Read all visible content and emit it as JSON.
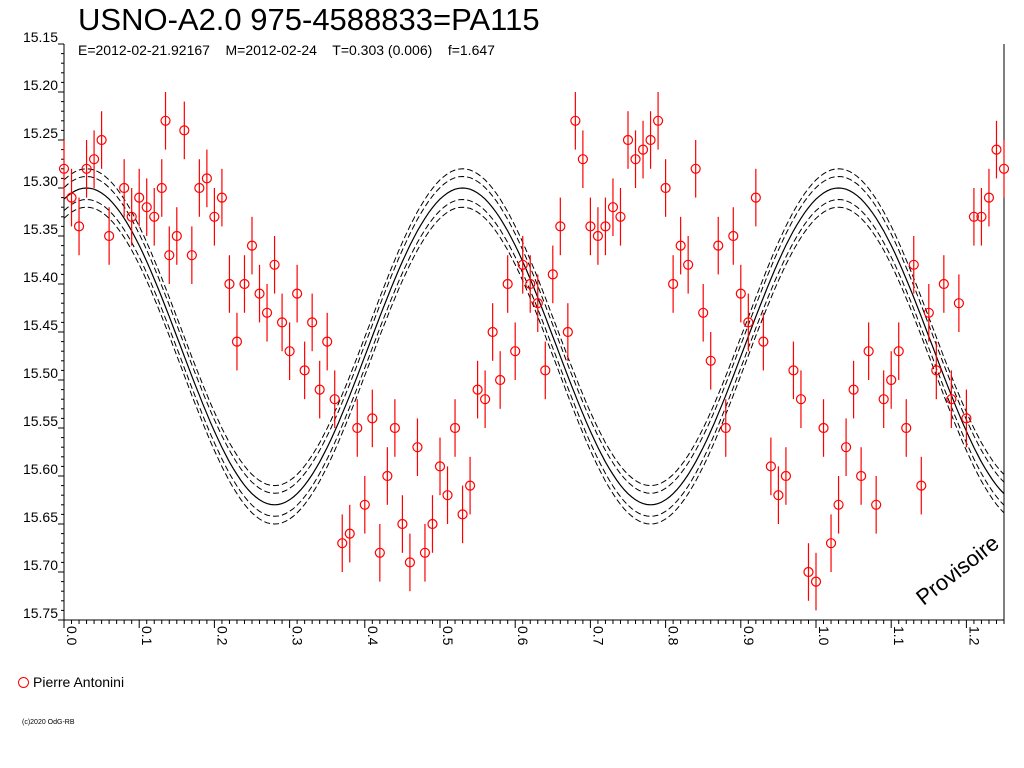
{
  "header": {
    "title": "USNO-A2.0 975-4588833=PA115",
    "subtitle": "E=2012-02-21.92167    M=2012-02-24    T=0.303 (0.006)    f=1.647"
  },
  "legend": {
    "label": "Pierre Antonini"
  },
  "watermark": "Provisoire",
  "copyright": "(c)2020 OdG-RB",
  "colors": {
    "points": "#ff0000",
    "fit": "#000000"
  },
  "chart_data": {
    "type": "scatter",
    "title": "USNO-A2.0 975-4588833=PA115",
    "xlabel": "",
    "ylabel": "",
    "xlim": [
      0.0,
      1.25
    ],
    "ylim": [
      15.75,
      15.15
    ],
    "y_inverted": true,
    "grid": false,
    "xticks": [
      "0.0",
      "0.1",
      "0.2",
      "0.3",
      "0.4",
      "0.5",
      "0.6",
      "0.7",
      "0.8",
      "0.9",
      "1.0",
      "1.1",
      "1.2"
    ],
    "yticks": [
      "15.15",
      "15.20",
      "15.25",
      "15.30",
      "15.35",
      "15.40",
      "15.45",
      "15.50",
      "15.55",
      "15.60",
      "15.65",
      "15.70",
      "15.75"
    ],
    "fit_curve": {
      "period_phase": 0.5,
      "mean_mag": 15.465,
      "amplitude": 0.165,
      "max_phase": 0.03,
      "band_offsets": [
        0.012,
        0.02
      ]
    },
    "series": [
      {
        "name": "Pierre Antonini",
        "marker": "open-circle",
        "points": [
          [
            0.0,
            15.28,
            0.03
          ],
          [
            0.01,
            15.31,
            0.03
          ],
          [
            0.02,
            15.34,
            0.03
          ],
          [
            0.03,
            15.28,
            0.03
          ],
          [
            0.04,
            15.27,
            0.03
          ],
          [
            0.05,
            15.25,
            0.03
          ],
          [
            0.06,
            15.35,
            0.03
          ],
          [
            0.08,
            15.3,
            0.03
          ],
          [
            0.09,
            15.33,
            0.03
          ],
          [
            0.1,
            15.31,
            0.03
          ],
          [
            0.11,
            15.32,
            0.03
          ],
          [
            0.12,
            15.33,
            0.03
          ],
          [
            0.13,
            15.3,
            0.03
          ],
          [
            0.135,
            15.23,
            0.03
          ],
          [
            0.14,
            15.37,
            0.03
          ],
          [
            0.15,
            15.35,
            0.03
          ],
          [
            0.16,
            15.24,
            0.03
          ],
          [
            0.17,
            15.37,
            0.03
          ],
          [
            0.18,
            15.3,
            0.03
          ],
          [
            0.19,
            15.29,
            0.03
          ],
          [
            0.2,
            15.33,
            0.03
          ],
          [
            0.21,
            15.31,
            0.03
          ],
          [
            0.22,
            15.4,
            0.03
          ],
          [
            0.23,
            15.46,
            0.03
          ],
          [
            0.24,
            15.4,
            0.03
          ],
          [
            0.25,
            15.36,
            0.03
          ],
          [
            0.26,
            15.41,
            0.03
          ],
          [
            0.27,
            15.43,
            0.03
          ],
          [
            0.28,
            15.38,
            0.03
          ],
          [
            0.29,
            15.44,
            0.03
          ],
          [
            0.3,
            15.47,
            0.03
          ],
          [
            0.31,
            15.41,
            0.03
          ],
          [
            0.32,
            15.49,
            0.03
          ],
          [
            0.33,
            15.44,
            0.03
          ],
          [
            0.34,
            15.51,
            0.03
          ],
          [
            0.35,
            15.46,
            0.03
          ],
          [
            0.36,
            15.52,
            0.03
          ],
          [
            0.37,
            15.67,
            0.03
          ],
          [
            0.38,
            15.66,
            0.03
          ],
          [
            0.39,
            15.55,
            0.03
          ],
          [
            0.4,
            15.63,
            0.03
          ],
          [
            0.41,
            15.54,
            0.03
          ],
          [
            0.42,
            15.68,
            0.03
          ],
          [
            0.43,
            15.6,
            0.03
          ],
          [
            0.44,
            15.55,
            0.03
          ],
          [
            0.45,
            15.65,
            0.03
          ],
          [
            0.46,
            15.69,
            0.03
          ],
          [
            0.47,
            15.57,
            0.03
          ],
          [
            0.48,
            15.68,
            0.03
          ],
          [
            0.49,
            15.65,
            0.03
          ],
          [
            0.5,
            15.59,
            0.03
          ],
          [
            0.51,
            15.62,
            0.03
          ],
          [
            0.52,
            15.55,
            0.03
          ],
          [
            0.53,
            15.64,
            0.03
          ],
          [
            0.54,
            15.61,
            0.03
          ],
          [
            0.55,
            15.51,
            0.03
          ],
          [
            0.56,
            15.52,
            0.03
          ],
          [
            0.57,
            15.45,
            0.03
          ],
          [
            0.58,
            15.5,
            0.03
          ],
          [
            0.59,
            15.4,
            0.03
          ],
          [
            0.6,
            15.47,
            0.03
          ],
          [
            0.61,
            15.38,
            0.03
          ],
          [
            0.62,
            15.4,
            0.03
          ],
          [
            0.63,
            15.42,
            0.03
          ],
          [
            0.64,
            15.49,
            0.03
          ],
          [
            0.65,
            15.39,
            0.03
          ],
          [
            0.66,
            15.34,
            0.03
          ],
          [
            0.67,
            15.45,
            0.03
          ],
          [
            0.68,
            15.23,
            0.03
          ],
          [
            0.69,
            15.27,
            0.03
          ],
          [
            0.7,
            15.34,
            0.03
          ],
          [
            0.71,
            15.35,
            0.03
          ],
          [
            0.72,
            15.34,
            0.03
          ],
          [
            0.73,
            15.32,
            0.03
          ],
          [
            0.74,
            15.33,
            0.03
          ],
          [
            0.75,
            15.25,
            0.03
          ],
          [
            0.76,
            15.27,
            0.03
          ],
          [
            0.77,
            15.26,
            0.03
          ],
          [
            0.78,
            15.25,
            0.03
          ],
          [
            0.79,
            15.23,
            0.03
          ],
          [
            0.8,
            15.3,
            0.03
          ],
          [
            0.81,
            15.4,
            0.03
          ],
          [
            0.82,
            15.36,
            0.03
          ],
          [
            0.83,
            15.38,
            0.03
          ],
          [
            0.84,
            15.28,
            0.03
          ],
          [
            0.85,
            15.43,
            0.03
          ],
          [
            0.86,
            15.48,
            0.03
          ],
          [
            0.87,
            15.36,
            0.03
          ],
          [
            0.88,
            15.55,
            0.03
          ],
          [
            0.89,
            15.35,
            0.03
          ],
          [
            0.9,
            15.41,
            0.03
          ],
          [
            0.91,
            15.44,
            0.03
          ],
          [
            0.92,
            15.31,
            0.03
          ],
          [
            0.93,
            15.46,
            0.03
          ],
          [
            0.94,
            15.59,
            0.03
          ],
          [
            0.95,
            15.62,
            0.03
          ],
          [
            0.96,
            15.6,
            0.03
          ],
          [
            0.97,
            15.49,
            0.03
          ],
          [
            0.98,
            15.52,
            0.03
          ],
          [
            0.99,
            15.7,
            0.03
          ],
          [
            1.0,
            15.71,
            0.03
          ],
          [
            1.01,
            15.55,
            0.03
          ],
          [
            1.02,
            15.67,
            0.03
          ],
          [
            1.03,
            15.63,
            0.03
          ],
          [
            1.04,
            15.57,
            0.03
          ],
          [
            1.05,
            15.51,
            0.03
          ],
          [
            1.06,
            15.6,
            0.03
          ],
          [
            1.07,
            15.47,
            0.03
          ],
          [
            1.08,
            15.63,
            0.03
          ],
          [
            1.09,
            15.52,
            0.03
          ],
          [
            1.1,
            15.5,
            0.03
          ],
          [
            1.11,
            15.47,
            0.03
          ],
          [
            1.12,
            15.55,
            0.03
          ],
          [
            1.13,
            15.38,
            0.03
          ],
          [
            1.14,
            15.61,
            0.03
          ],
          [
            1.15,
            15.43,
            0.03
          ],
          [
            1.16,
            15.49,
            0.03
          ],
          [
            1.17,
            15.4,
            0.03
          ],
          [
            1.18,
            15.52,
            0.03
          ],
          [
            1.19,
            15.42,
            0.03
          ],
          [
            1.2,
            15.54,
            0.03
          ],
          [
            1.21,
            15.33,
            0.03
          ],
          [
            1.22,
            15.33,
            0.03
          ],
          [
            1.23,
            15.31,
            0.03
          ],
          [
            1.24,
            15.26,
            0.03
          ],
          [
            1.25,
            15.28,
            0.03
          ]
        ]
      }
    ]
  }
}
